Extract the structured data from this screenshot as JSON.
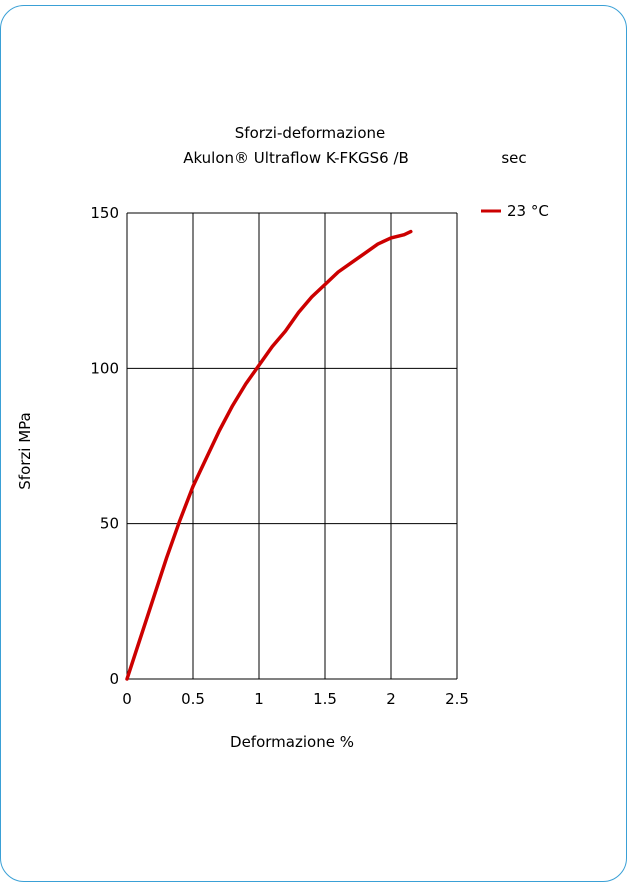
{
  "colors": {
    "border": "#3aa0d6",
    "grid": "#000000",
    "series": "#cc0000",
    "text": "#000000"
  },
  "chart_data": {
    "type": "line",
    "title": "Sforzi-deformazione",
    "subtitle": "Akulon® Ultraflow K-FKGS6 /B",
    "subtitle_suffix": "sec",
    "xlabel": "Deformazione   %",
    "ylabel": "Sforzi   MPa",
    "xlim": [
      0,
      2.5
    ],
    "ylim": [
      0,
      150
    ],
    "xticks": [
      0,
      0.5,
      1,
      1.5,
      2,
      2.5
    ],
    "xtick_labels": [
      "0",
      "0.5",
      "1",
      "1.5",
      "2",
      "2.5"
    ],
    "yticks": [
      0,
      50,
      100,
      150
    ],
    "ytick_labels": [
      "0",
      "50",
      "100",
      "150"
    ],
    "grid": true,
    "legend_position": "top-right",
    "series": [
      {
        "name": "23 °C",
        "color": "#cc0000",
        "x": [
          0,
          0.1,
          0.2,
          0.3,
          0.4,
          0.5,
          0.6,
          0.7,
          0.8,
          0.9,
          1.0,
          1.1,
          1.2,
          1.3,
          1.4,
          1.5,
          1.6,
          1.7,
          1.8,
          1.9,
          2.0,
          2.1,
          2.15
        ],
        "y": [
          0,
          13,
          26,
          39,
          51,
          62,
          71,
          80,
          88,
          95,
          101,
          107,
          112,
          118,
          123,
          127,
          131,
          134,
          137,
          140,
          142,
          143,
          144
        ]
      }
    ]
  }
}
